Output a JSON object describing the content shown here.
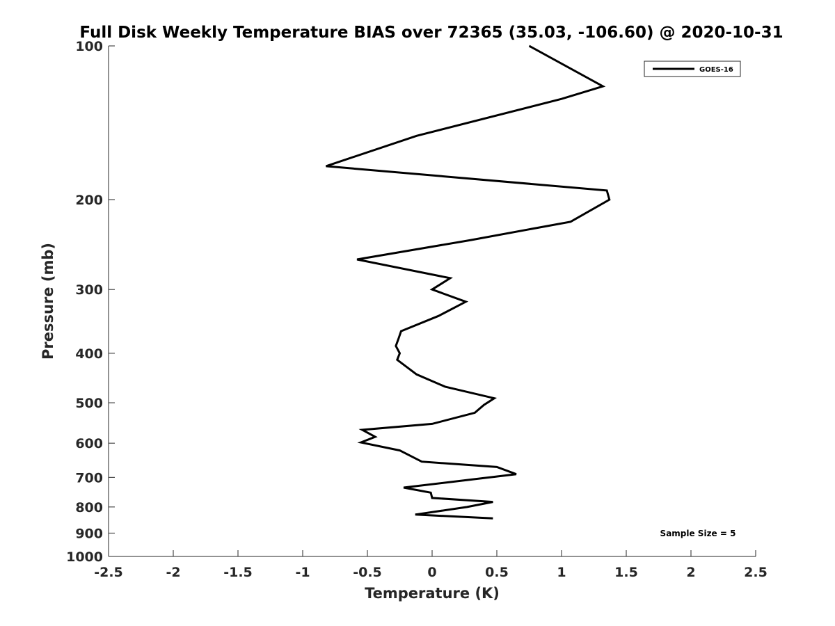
{
  "chart_data": {
    "type": "line",
    "title": "Full Disk Weekly Temperature BIAS over 72365 (35.03, -106.60) @ 2020-10-31",
    "xlabel": "Temperature (K)",
    "ylabel": "Pressure (mb)",
    "xlim": [
      -2.5,
      2.5
    ],
    "ylim": [
      100,
      1000
    ],
    "y_scale": "log",
    "y_reversed": true,
    "xticks": [
      "-2.5",
      "-2",
      "-1.5",
      "-1",
      "-0.5",
      "0",
      "0.5",
      "1",
      "1.5",
      "2",
      "2.5"
    ],
    "yticks": [
      "100",
      "200",
      "300",
      "400",
      "500",
      "600",
      "700",
      "800",
      "900",
      "1000"
    ],
    "grid": false,
    "legend_position": "top-right",
    "series": [
      {
        "name": "GOES-16",
        "color": "#000000",
        "points": [
          {
            "x": 0.75,
            "y": 100
          },
          {
            "x": 1.32,
            "y": 120
          },
          {
            "x": 1.0,
            "y": 127
          },
          {
            "x": -0.12,
            "y": 150
          },
          {
            "x": -0.82,
            "y": 172
          },
          {
            "x": 1.35,
            "y": 192
          },
          {
            "x": 1.37,
            "y": 200
          },
          {
            "x": 1.07,
            "y": 221
          },
          {
            "x": 0.3,
            "y": 240
          },
          {
            "x": -0.58,
            "y": 262
          },
          {
            "x": 0.14,
            "y": 285
          },
          {
            "x": 0.0,
            "y": 300
          },
          {
            "x": 0.26,
            "y": 317
          },
          {
            "x": 0.05,
            "y": 338
          },
          {
            "x": -0.24,
            "y": 362
          },
          {
            "x": -0.26,
            "y": 375
          },
          {
            "x": -0.28,
            "y": 387
          },
          {
            "x": -0.25,
            "y": 400
          },
          {
            "x": -0.27,
            "y": 412
          },
          {
            "x": -0.12,
            "y": 440
          },
          {
            "x": 0.1,
            "y": 465
          },
          {
            "x": 0.48,
            "y": 490
          },
          {
            "x": 0.4,
            "y": 505
          },
          {
            "x": 0.33,
            "y": 523
          },
          {
            "x": 0.0,
            "y": 550
          },
          {
            "x": -0.54,
            "y": 565
          },
          {
            "x": -0.44,
            "y": 583
          },
          {
            "x": -0.55,
            "y": 598
          },
          {
            "x": -0.25,
            "y": 620
          },
          {
            "x": -0.08,
            "y": 652
          },
          {
            "x": 0.5,
            "y": 668
          },
          {
            "x": 0.65,
            "y": 690
          },
          {
            "x": 0.3,
            "y": 707
          },
          {
            "x": -0.22,
            "y": 733
          },
          {
            "x": -0.01,
            "y": 750
          },
          {
            "x": 0.0,
            "y": 768
          },
          {
            "x": 0.47,
            "y": 782
          },
          {
            "x": 0.27,
            "y": 800
          },
          {
            "x": -0.13,
            "y": 828
          },
          {
            "x": 0.47,
            "y": 842
          }
        ]
      }
    ],
    "annotations": [
      "Sample Size = 5"
    ]
  }
}
